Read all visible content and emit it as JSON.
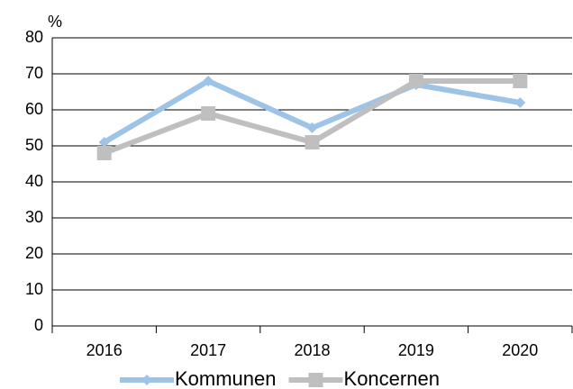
{
  "chart_data": {
    "type": "line",
    "y_label": "%",
    "categories": [
      "2016",
      "2017",
      "2018",
      "2019",
      "2020"
    ],
    "series": [
      {
        "name": "Kommunen",
        "color": "#9dc3e6",
        "marker": "diamond",
        "values": [
          51,
          68,
          55,
          67,
          62
        ]
      },
      {
        "name": "Koncernen",
        "color": "#bfbfbf",
        "marker": "square",
        "values": [
          48,
          59,
          51,
          68,
          68
        ]
      }
    ],
    "ylim": [
      0,
      80
    ],
    "yticks": [
      0,
      10,
      20,
      30,
      40,
      50,
      60,
      70,
      80
    ],
    "grid": true,
    "legend": "bottom"
  }
}
